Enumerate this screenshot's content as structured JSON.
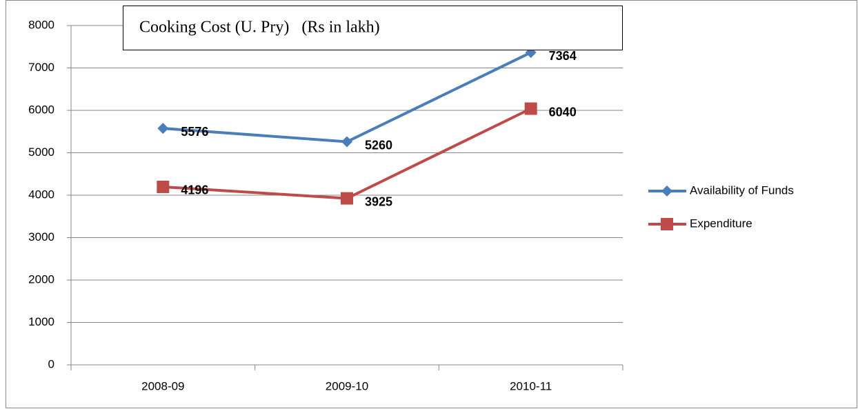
{
  "chart_data": {
    "type": "line",
    "title": "Cooking Cost (U. Pry)   (Rs in lakh)",
    "categories": [
      "2008-09",
      "2009-10",
      "2010-11"
    ],
    "series": [
      {
        "name": "Availability of Funds",
        "color": "#4a7ebb",
        "marker": "diamond",
        "values": [
          5576,
          5260,
          7364
        ]
      },
      {
        "name": "Expenditure",
        "color": "#be4b48",
        "marker": "square",
        "values": [
          4196,
          3925,
          6040
        ]
      }
    ],
    "ylim": [
      0,
      8000
    ],
    "yticks": [
      0,
      1000,
      2000,
      3000,
      4000,
      5000,
      6000,
      7000,
      8000
    ],
    "grid": true,
    "legend": "right"
  }
}
